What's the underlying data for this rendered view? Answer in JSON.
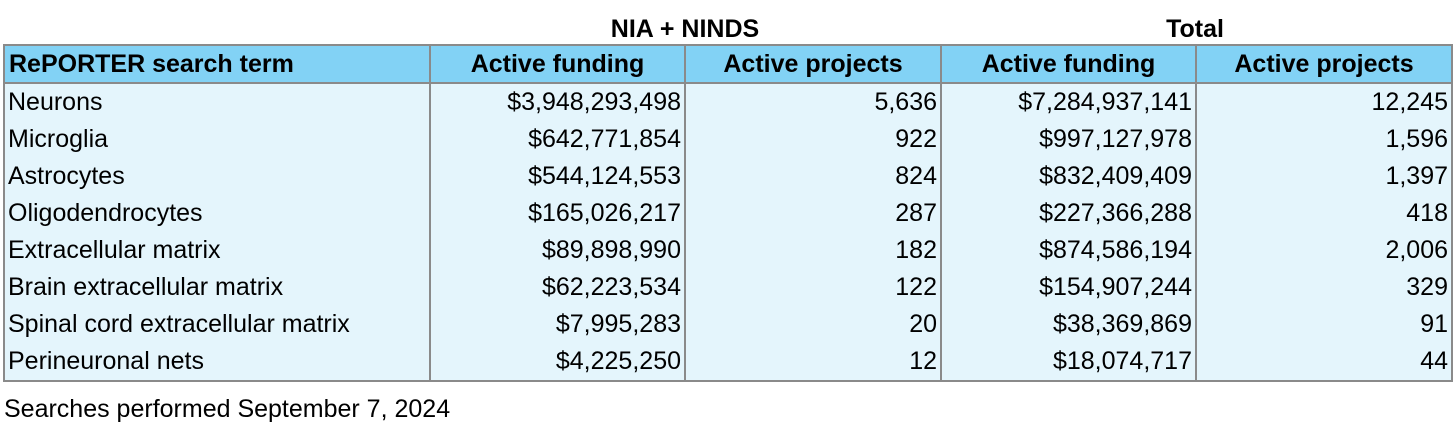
{
  "chart_data": {
    "type": "table",
    "group_headers": [
      "NIA + NINDS",
      "Total"
    ],
    "columns": [
      "RePORTER search term",
      "Active funding",
      "Active projects",
      "Active funding",
      "Active projects"
    ],
    "rows": [
      [
        "Neurons",
        "$3,948,293,498",
        "5,636",
        "$7,284,937,141",
        "12,245"
      ],
      [
        "Microglia",
        "$642,771,854",
        "922",
        "$997,127,978",
        "1,596"
      ],
      [
        "Astrocytes",
        "$544,124,553",
        "824",
        "$832,409,409",
        "1,397"
      ],
      [
        "Oligodendrocytes",
        "$165,026,217",
        "287",
        "$227,366,288",
        "418"
      ],
      [
        "Extracellular matrix",
        "$89,898,990",
        "182",
        "$874,586,194",
        "2,006"
      ],
      [
        "Brain extracellular matrix",
        "$62,223,534",
        "122",
        "$154,907,244",
        "329"
      ],
      [
        "Spinal cord extracellular matrix",
        "$7,995,283",
        "20",
        "$38,369,869",
        "91"
      ],
      [
        "Perineuronal nets",
        "$4,225,250",
        "12",
        "$18,074,717",
        "44"
      ]
    ],
    "footnote": "Searches performed September 7, 2024"
  },
  "colors": {
    "header_bg": "#82d2f5",
    "cell_bg": "#e4f5fc",
    "border": "#8a8a8a"
  }
}
